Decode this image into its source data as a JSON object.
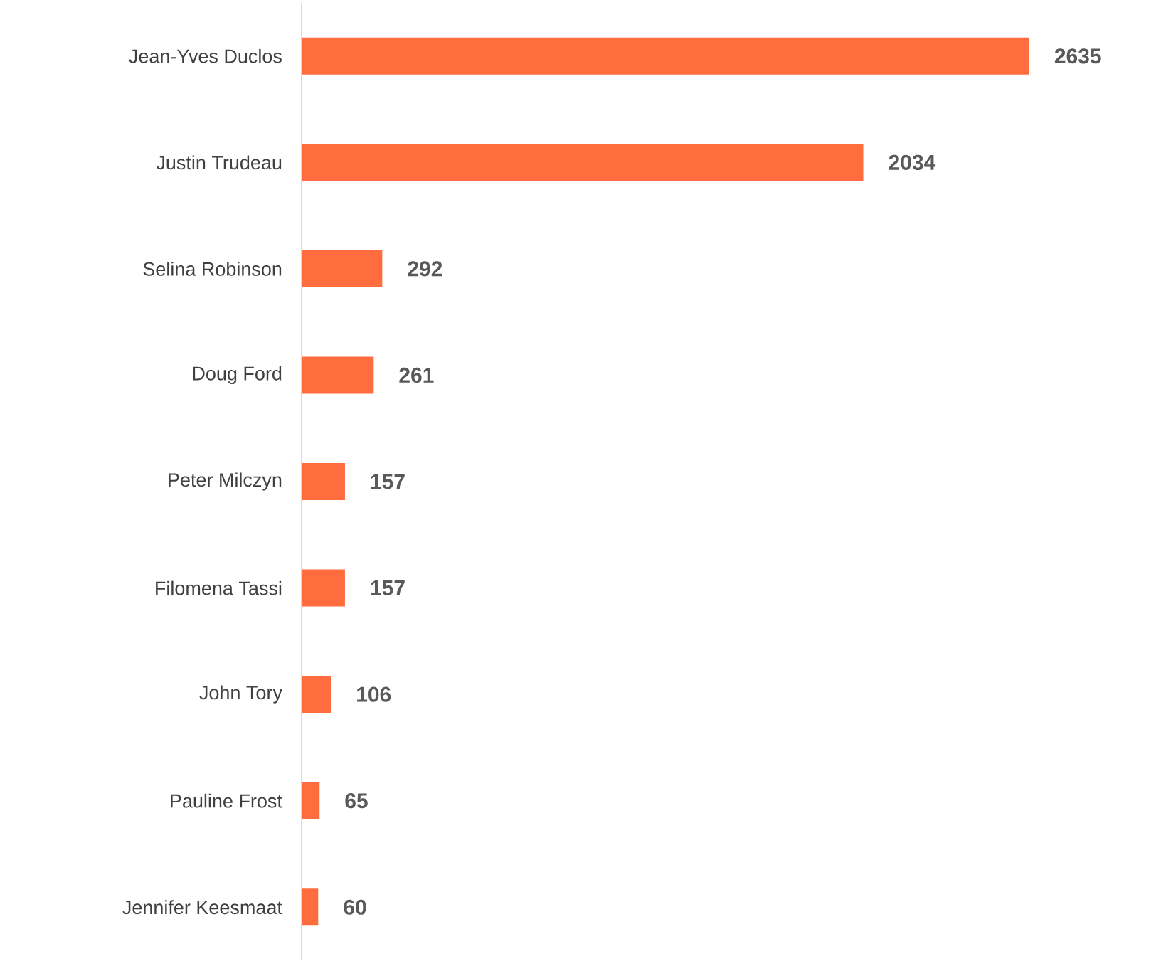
{
  "chart_data": {
    "type": "bar",
    "orientation": "horizontal",
    "data_labels": true,
    "categories": [
      "Jean-Yves Duclos",
      "Justin Trudeau",
      "Selina Robinson",
      "Doug Ford",
      "Peter Milczyn",
      "Filomena Tassi",
      "John Tory",
      "Pauline Frost",
      "Jennifer Keesmaat"
    ],
    "values": [
      2635,
      2034,
      292,
      261,
      157,
      157,
      106,
      65,
      60
    ],
    "color": "#ff6d3f"
  }
}
